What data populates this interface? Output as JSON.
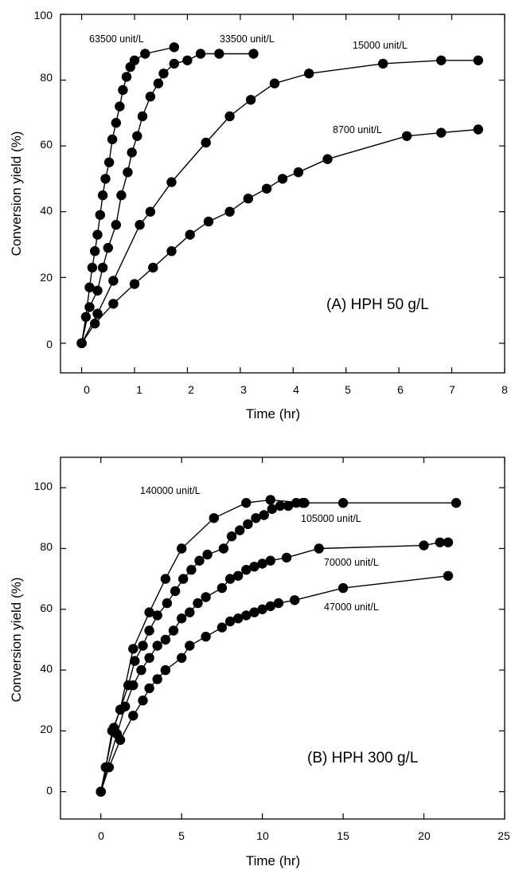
{
  "chart_data": [
    {
      "type": "scatter",
      "panel_label": "(A) HPH 50 g/L",
      "xlabel": "Time (hr)",
      "ylabel": "Conversion yield (%)",
      "xlim": [
        -0.4,
        8
      ],
      "ylim": [
        -9,
        100
      ],
      "xticks": [
        0,
        1,
        2,
        3,
        4,
        5,
        6,
        7,
        8
      ],
      "yticks": [
        0,
        20,
        40,
        60,
        80,
        100
      ],
      "grid": false,
      "legend": "inline labels",
      "series": [
        {
          "name": "63500 unit/L",
          "points": [
            [
              0,
              0
            ],
            [
              0.08,
              8
            ],
            [
              0.15,
              17
            ],
            [
              0.2,
              23
            ],
            [
              0.25,
              28
            ],
            [
              0.3,
              33
            ],
            [
              0.35,
              39
            ],
            [
              0.4,
              45
            ],
            [
              0.45,
              50
            ],
            [
              0.52,
              55
            ],
            [
              0.58,
              62
            ],
            [
              0.65,
              67
            ],
            [
              0.72,
              72
            ],
            [
              0.78,
              77
            ],
            [
              0.85,
              81
            ],
            [
              0.92,
              84
            ],
            [
              1.0,
              86
            ],
            [
              1.2,
              88
            ],
            [
              1.75,
              90
            ]
          ]
        },
        {
          "name": "33500 unit/L",
          "points": [
            [
              0,
              0
            ],
            [
              0.15,
              11
            ],
            [
              0.3,
              16
            ],
            [
              0.4,
              23
            ],
            [
              0.5,
              29
            ],
            [
              0.65,
              36
            ],
            [
              0.75,
              45
            ],
            [
              0.87,
              52
            ],
            [
              0.95,
              58
            ],
            [
              1.05,
              63
            ],
            [
              1.15,
              69
            ],
            [
              1.3,
              75
            ],
            [
              1.45,
              79
            ],
            [
              1.55,
              82
            ],
            [
              1.75,
              85
            ],
            [
              2.0,
              86
            ],
            [
              2.25,
              88
            ],
            [
              2.6,
              88
            ],
            [
              3.25,
              88
            ]
          ]
        },
        {
          "name": "15000 unit/L",
          "points": [
            [
              0,
              0
            ],
            [
              0.3,
              9
            ],
            [
              0.6,
              19
            ],
            [
              1.1,
              36
            ],
            [
              1.3,
              40
            ],
            [
              1.7,
              49
            ],
            [
              2.35,
              61
            ],
            [
              2.8,
              69
            ],
            [
              3.2,
              74
            ],
            [
              3.65,
              79
            ],
            [
              4.3,
              82
            ],
            [
              5.7,
              85
            ],
            [
              6.8,
              86
            ],
            [
              7.5,
              86
            ]
          ]
        },
        {
          "name": "8700 unit/L",
          "points": [
            [
              0,
              0
            ],
            [
              0.25,
              6
            ],
            [
              0.6,
              12
            ],
            [
              1.0,
              18
            ],
            [
              1.35,
              23
            ],
            [
              1.7,
              28
            ],
            [
              2.05,
              33
            ],
            [
              2.4,
              37
            ],
            [
              2.8,
              40
            ],
            [
              3.15,
              44
            ],
            [
              3.5,
              47
            ],
            [
              3.8,
              50
            ],
            [
              4.1,
              52
            ],
            [
              4.65,
              56
            ],
            [
              6.15,
              63
            ],
            [
              6.8,
              64
            ],
            [
              7.5,
              65
            ]
          ]
        }
      ]
    },
    {
      "type": "scatter",
      "panel_label": "(B) HPH 300 g/L",
      "xlabel": "Time (hr)",
      "ylabel": "Conversion yield (%)",
      "xlim": [
        -2.5,
        25
      ],
      "ylim": [
        -9,
        110
      ],
      "xticks": [
        0,
        5,
        10,
        15,
        20,
        25
      ],
      "yticks": [
        0,
        20,
        40,
        60,
        80,
        100
      ],
      "grid": false,
      "legend": "inline labels",
      "series": [
        {
          "name": "140000 unit/L",
          "points": [
            [
              0,
              0
            ],
            [
              0.3,
              8
            ],
            [
              0.7,
              20
            ],
            [
              1.2,
              27
            ],
            [
              2.0,
              47
            ],
            [
              3.0,
              59
            ],
            [
              4.0,
              70
            ],
            [
              5.0,
              80
            ],
            [
              7.0,
              90
            ],
            [
              9.0,
              95
            ],
            [
              10.5,
              96
            ],
            [
              12.5,
              95
            ],
            [
              15.0,
              95
            ],
            [
              22.0,
              95
            ]
          ]
        },
        {
          "name": "105000 unit/L",
          "points": [
            [
              0,
              0
            ],
            [
              0.3,
              8
            ],
            [
              0.8,
              21
            ],
            [
              1.2,
              27
            ],
            [
              1.7,
              35
            ],
            [
              2.1,
              43
            ],
            [
              2.6,
              48
            ],
            [
              3.0,
              53
            ],
            [
              3.5,
              58
            ],
            [
              4.1,
              62
            ],
            [
              4.6,
              66
            ],
            [
              5.1,
              70
            ],
            [
              5.6,
              73
            ],
            [
              6.1,
              76
            ],
            [
              6.6,
              78
            ],
            [
              7.6,
              80
            ],
            [
              8.1,
              84
            ],
            [
              8.6,
              86
            ],
            [
              9.1,
              88
            ],
            [
              9.6,
              90
            ],
            [
              10.1,
              91
            ],
            [
              10.6,
              93
            ],
            [
              11.1,
              94
            ],
            [
              11.6,
              94
            ],
            [
              12.1,
              95
            ],
            [
              12.6,
              95
            ]
          ]
        },
        {
          "name": "70000 unit/L",
          "points": [
            [
              0,
              0
            ],
            [
              0.4,
              8
            ],
            [
              1.0,
              19
            ],
            [
              1.5,
              28
            ],
            [
              2.0,
              35
            ],
            [
              2.5,
              40
            ],
            [
              3.0,
              44
            ],
            [
              3.5,
              48
            ],
            [
              4.0,
              50
            ],
            [
              4.5,
              53
            ],
            [
              5.0,
              57
            ],
            [
              5.5,
              59
            ],
            [
              6.0,
              62
            ],
            [
              6.5,
              64
            ],
            [
              7.5,
              67
            ],
            [
              8.0,
              70
            ],
            [
              8.5,
              71
            ],
            [
              9.0,
              73
            ],
            [
              9.5,
              74
            ],
            [
              10.0,
              75
            ],
            [
              10.5,
              76
            ],
            [
              11.5,
              77
            ],
            [
              13.5,
              80
            ],
            [
              20.0,
              81
            ],
            [
              21.0,
              82
            ],
            [
              21.5,
              82
            ]
          ]
        },
        {
          "name": "47000 unit/L",
          "points": [
            [
              0,
              0
            ],
            [
              0.5,
              8
            ],
            [
              1.2,
              17
            ],
            [
              2.0,
              25
            ],
            [
              2.6,
              30
            ],
            [
              3.0,
              34
            ],
            [
              3.5,
              37
            ],
            [
              4.0,
              40
            ],
            [
              5.0,
              44
            ],
            [
              5.5,
              48
            ],
            [
              6.5,
              51
            ],
            [
              7.5,
              54
            ],
            [
              8.0,
              56
            ],
            [
              8.5,
              57
            ],
            [
              9.0,
              58
            ],
            [
              9.5,
              59
            ],
            [
              10.0,
              60
            ],
            [
              10.5,
              61
            ],
            [
              11.0,
              62
            ],
            [
              12.0,
              63
            ],
            [
              15.0,
              67
            ],
            [
              21.5,
              71
            ]
          ]
        }
      ]
    }
  ]
}
